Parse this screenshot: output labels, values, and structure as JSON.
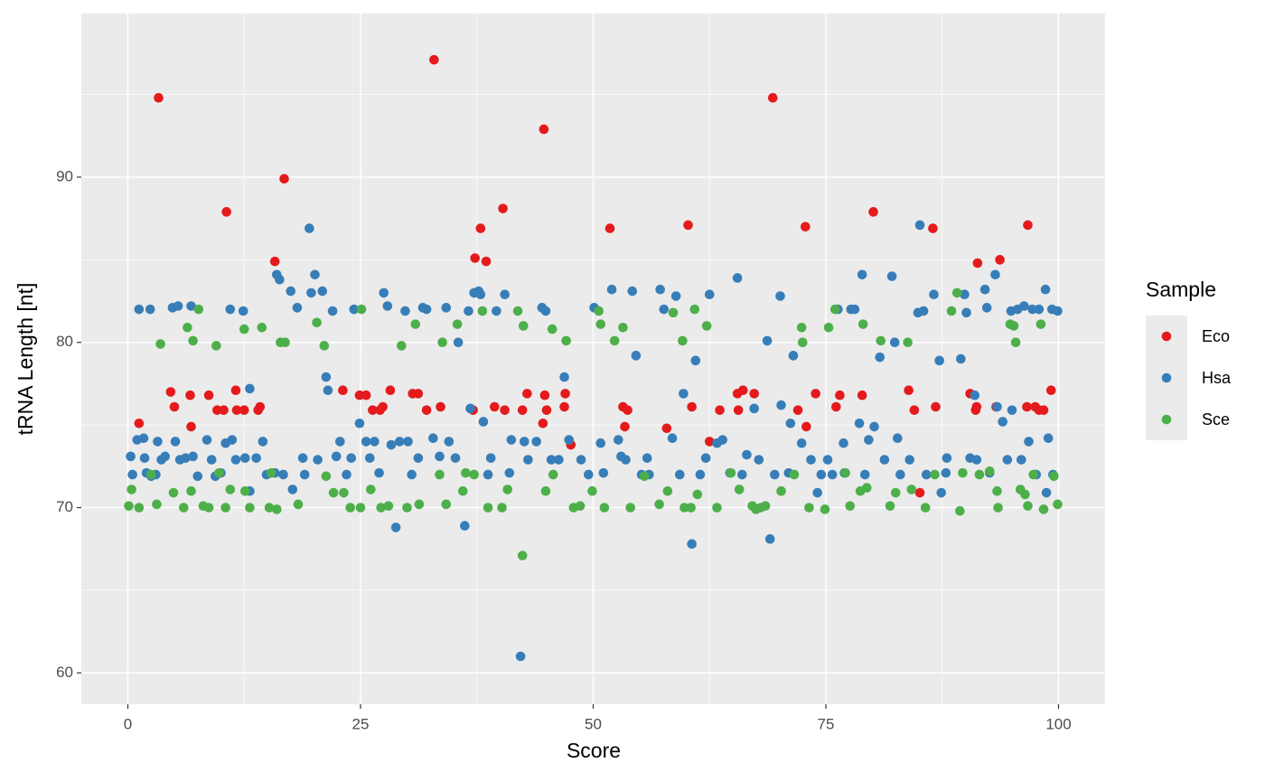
{
  "chart_data": {
    "type": "scatter",
    "x_label": "Score",
    "y_label": "tRNA Length [nt]",
    "legend_title": "Sample",
    "xlim": [
      -5,
      105
    ],
    "ylim": [
      58.1,
      99.9
    ],
    "xticks": [
      0,
      25,
      50,
      75,
      100
    ],
    "yticks": [
      60,
      70,
      80,
      90
    ],
    "minor_xticks": [
      12.5,
      37.5,
      62.5,
      87.5
    ],
    "minor_yticks": [
      65,
      75,
      85,
      95
    ],
    "grid": true,
    "legend": "right",
    "series": [
      {
        "name": "Eco",
        "color": "#e41a1c",
        "x": [
          3.3,
          1.2,
          4.6,
          5,
          6.7,
          6.8,
          8.7,
          9.6,
          10.3,
          10.6,
          11.6,
          11.7,
          12.5,
          14,
          14.2,
          15.8,
          16.8,
          23.1,
          24.9,
          25.6,
          26.3,
          27.1,
          27.4,
          28.2,
          30.6,
          31.2,
          32.1,
          32.9,
          33.6,
          37.1,
          37.3,
          37.9,
          38.5,
          39.4,
          40.3,
          40.5,
          42.4,
          42.9,
          44.6,
          44.7,
          44.8,
          45,
          47,
          46.9,
          47.6,
          51.8,
          53.2,
          53.4,
          53.7,
          57.9,
          60.2,
          60.6,
          62.5,
          63.6,
          65.5,
          65.6,
          66.1,
          67.3,
          69.3,
          72,
          72.8,
          72.9,
          73.9,
          76.1,
          76.5,
          78.9,
          80.1,
          83.9,
          84.5,
          85.1,
          86.5,
          86.8,
          90.5,
          91.1,
          91.2,
          91.3,
          93.3,
          93.7,
          96.6,
          96.7,
          97.5,
          97.9,
          98.4,
          99.2
        ],
        "values": [
          94.8,
          75.1,
          77,
          76.1,
          76.8,
          74.9,
          76.8,
          75.9,
          75.9,
          87.9,
          77.1,
          75.9,
          75.9,
          75.9,
          76.1,
          84.9,
          89.9,
          77.1,
          76.8,
          76.8,
          75.9,
          75.9,
          76.1,
          77.1,
          76.9,
          76.9,
          75.9,
          97.1,
          76.1,
          75.9,
          85.1,
          86.9,
          84.9,
          76.1,
          88.1,
          75.9,
          75.9,
          76.9,
          75.1,
          92.9,
          76.8,
          75.9,
          76.9,
          76.1,
          73.8,
          86.9,
          76.1,
          74.9,
          75.9,
          74.8,
          87.1,
          76.1,
          74,
          75.9,
          76.9,
          75.9,
          77.1,
          76.9,
          94.8,
          75.9,
          87,
          74.9,
          76.9,
          76.1,
          76.8,
          76.8,
          87.9,
          77.1,
          75.9,
          70.9,
          86.9,
          76.1,
          76.9,
          75.9,
          76.1,
          84.8,
          76.1,
          85,
          76.1,
          87.1,
          76.1,
          75.9,
          75.9,
          77.1
        ]
      },
      {
        "name": "Hsa",
        "color": "#377eb8",
        "x": [
          0.3,
          0.5,
          1,
          1.2,
          1.7,
          1.8,
          2.4,
          2.5,
          3.2,
          3.6,
          4,
          4.8,
          5.1,
          5.4,
          5.6,
          6.2,
          6.8,
          7,
          7.5,
          8.5,
          9,
          9.4,
          10,
          10.5,
          11,
          11.2,
          11.6,
          12.4,
          12.6,
          13.1,
          13.1,
          13.8,
          14.5,
          15.8,
          16,
          16.3,
          16.7,
          17.5,
          17.7,
          18.2,
          18.8,
          19.5,
          19.7,
          20.1,
          20.4,
          20.9,
          21.3,
          21.5,
          22,
          22.4,
          22.8,
          24,
          24.3,
          24.9,
          25.6,
          26.5,
          27.5,
          27.9,
          28.3,
          28.8,
          29.2,
          29.8,
          30.1,
          31.2,
          31.7,
          32.1,
          32.8,
          34.2,
          34.5,
          35.5,
          36.2,
          36.6,
          36.8,
          37.2,
          37.7,
          37.9,
          38.2,
          39,
          39.6,
          40.5,
          41.2,
          42.2,
          42.6,
          43.9,
          44.5,
          44.9,
          45.5,
          46.9,
          47.4,
          50.1,
          50.8,
          52,
          52.7,
          53.5,
          54.2,
          54.6,
          55.2,
          57.2,
          57.6,
          58.5,
          58.9,
          59.7,
          60.6,
          61,
          62.5,
          63.9,
          65.5,
          66.5,
          67.3,
          68.7,
          69,
          70.1,
          70.2,
          71.2,
          71.5,
          72.4,
          73.4,
          74.1,
          75.2,
          76.3,
          76.9,
          77.7,
          78.1,
          78.6,
          78.9,
          79.6,
          80.2,
          80.8,
          82.1,
          82.4,
          82.7,
          84,
          84.9,
          85.1,
          85.5,
          86.6,
          87.2,
          87.4,
          89.5,
          89.9,
          90.1,
          91,
          91.2,
          92.1,
          92.3,
          93.2,
          93.4,
          94,
          94.9,
          95,
          95.6,
          96.3,
          96.8,
          97.2,
          97.9,
          98.6,
          98.7,
          99.3,
          99.9,
          98.9,
          3,
          26,
          33.5,
          35.2,
          41,
          46.3,
          48.7,
          51.1,
          53,
          56,
          62.1,
          64.7,
          67.8,
          75.7,
          81.3,
          88,
          92.6,
          96,
          99.4,
          2,
          14.9,
          19,
          23.5,
          27,
          30.5,
          38.7,
          43,
          49.5,
          55.8,
          59.3,
          61.5,
          63.3,
          66,
          69.5,
          71,
          74.5,
          77,
          79.2,
          83,
          85.8,
          87.9,
          90.5,
          94.5,
          97.6
        ],
        "values": [
          73.1,
          72,
          74.1,
          82,
          74.2,
          73,
          82,
          71.9,
          74,
          72.9,
          73.1,
          82.1,
          74,
          82.2,
          72.9,
          73,
          82.2,
          73.1,
          71.9,
          74.1,
          72.9,
          71.9,
          72.1,
          73.9,
          82,
          74.1,
          72.9,
          81.9,
          73,
          77.2,
          71,
          73,
          74,
          72.1,
          84.1,
          83.8,
          72,
          83.1,
          71.1,
          82.1,
          73,
          86.9,
          83,
          84.1,
          72.9,
          83.1,
          77.9,
          77.1,
          81.9,
          73.1,
          74,
          73,
          82,
          75.1,
          74,
          74,
          83,
          82.2,
          73.8,
          68.8,
          74,
          81.9,
          74,
          73,
          82.1,
          82,
          74.2,
          82.1,
          74,
          80,
          68.9,
          81.9,
          76,
          83,
          83.1,
          82.9,
          75.2,
          73,
          81.9,
          82.9,
          74.1,
          61,
          74,
          74,
          82.1,
          81.9,
          72.9,
          77.9,
          74.1,
          82.1,
          73.9,
          83.2,
          74.1,
          72.9,
          83.1,
          79.2,
          72,
          83.2,
          82,
          74.2,
          82.8,
          76.9,
          67.8,
          78.9,
          82.9,
          74.1,
          83.9,
          73.2,
          76,
          80.1,
          68.1,
          82.8,
          76.2,
          75.1,
          79.2,
          73.9,
          72.9,
          70.9,
          72.9,
          82,
          73.9,
          82,
          82,
          75.1,
          84.1,
          74.1,
          74.9,
          79.1,
          84,
          80,
          74.2,
          72.9,
          81.8,
          87.1,
          81.9,
          82.9,
          78.9,
          70.9,
          79,
          82.9,
          81.8,
          76.8,
          72.9,
          83.2,
          82.1,
          84.1,
          76.1,
          75.2,
          81.9,
          75.9,
          82,
          82.2,
          74,
          82,
          82,
          83.2,
          70.9,
          82,
          81.9,
          74.2,
          72,
          73,
          73.1,
          73,
          72.1,
          72.9,
          72.9,
          72.1,
          73.1,
          72,
          73,
          72.1,
          72.9,
          72,
          72.9,
          73,
          72.1,
          72.9,
          72,
          72.1,
          72,
          72,
          72,
          72.1,
          72,
          72,
          72.9,
          72,
          73,
          72,
          72,
          73.9,
          72,
          72,
          72.1,
          72,
          72.1,
          72,
          72,
          72,
          72.1,
          73,
          72.9,
          72
        ]
      },
      {
        "name": "Sce",
        "color": "#4daf4a",
        "x": [
          0.1,
          0.4,
          1.2,
          2.5,
          3.1,
          3.5,
          4.9,
          6,
          6.4,
          7,
          7.6,
          6.8,
          8.1,
          8.7,
          9.5,
          9.8,
          10.5,
          11,
          12.5,
          12.6,
          13.1,
          14.4,
          15.2,
          15.4,
          16,
          16.4,
          16.9,
          18.3,
          20.3,
          21.1,
          21.3,
          22.1,
          23.2,
          23.9,
          25.1,
          25,
          26.1,
          27.2,
          28,
          29.4,
          30,
          30.9,
          31.3,
          33.8,
          34.2,
          35.4,
          36,
          36.3,
          37.2,
          38.1,
          38.7,
          40.2,
          40.8,
          41.9,
          42.4,
          42.5,
          44.9,
          45.6,
          47.1,
          47.9,
          48.6,
          49.9,
          50.6,
          50.8,
          51.2,
          52.3,
          53.2,
          54,
          55.5,
          57.1,
          58,
          58.6,
          59.6,
          59.8,
          60.5,
          60.9,
          61.2,
          62.2,
          63.3,
          65.7,
          67.1,
          67.5,
          68,
          68.5,
          70.2,
          71.6,
          72.4,
          72.5,
          73.2,
          74.9,
          75.3,
          76,
          77.1,
          77.6,
          78.7,
          79,
          79.4,
          80.9,
          81.9,
          82.5,
          83.8,
          84.2,
          85.7,
          88.5,
          89.1,
          89.4,
          89.7,
          91.5,
          92.6,
          93.4,
          93.5,
          94.8,
          95.2,
          95.4,
          95.9,
          96.4,
          96.7,
          98.1,
          98.4,
          99.5,
          99.9,
          97.3,
          86.7,
          64.8,
          45.7,
          33.5
        ],
        "values": [
          70.1,
          71.1,
          70,
          72,
          70.2,
          79.9,
          70.9,
          70,
          80.9,
          80.1,
          82,
          71,
          70.1,
          70,
          79.8,
          72.1,
          70,
          71.1,
          80.8,
          71,
          70,
          80.9,
          70,
          72.1,
          69.9,
          80,
          80,
          70.2,
          81.2,
          79.8,
          71.9,
          70.9,
          70.9,
          70,
          82,
          70,
          71.1,
          70,
          70.1,
          79.8,
          70,
          81.1,
          70.2,
          80,
          70.2,
          81.1,
          71,
          72.1,
          72,
          81.9,
          70,
          70,
          71.1,
          81.9,
          67.1,
          81,
          71,
          80.8,
          80.1,
          70,
          70.1,
          71,
          81.9,
          81.1,
          70,
          80.1,
          80.9,
          70,
          71.9,
          70.2,
          71,
          81.8,
          80.1,
          70,
          70,
          82,
          70.8,
          81,
          70,
          71.1,
          70.1,
          69.9,
          70,
          70.1,
          71,
          72,
          80.9,
          80,
          70,
          69.9,
          80.9,
          82,
          72.1,
          70.1,
          71,
          81.1,
          71.2,
          80.1,
          70.1,
          70.9,
          80,
          71.1,
          70,
          81.9,
          83,
          69.8,
          72.1,
          72,
          72.2,
          71,
          70,
          81.1,
          81,
          80,
          71.1,
          70.8,
          70.1,
          81.1,
          69.9,
          71.9,
          70.2,
          72,
          72,
          72.1,
          72,
          72
        ]
      }
    ]
  }
}
